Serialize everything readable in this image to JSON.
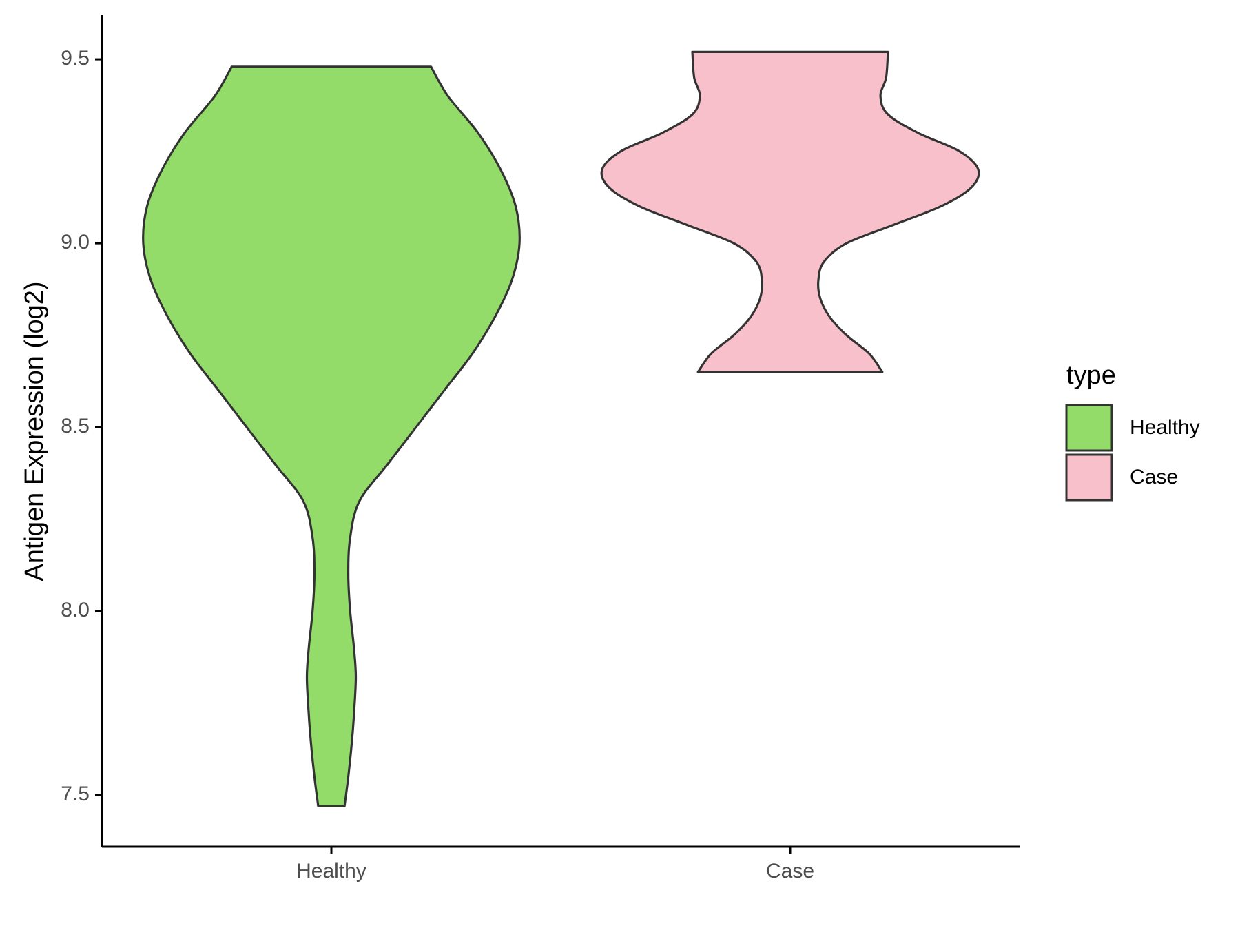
{
  "chart_data": {
    "type": "violin",
    "ylabel": "Antigen Expression (log2)",
    "xlabel": "",
    "ylim": [
      7.36,
      9.62
    ],
    "y_ticks": [
      7.5,
      8.0,
      8.5,
      9.0,
      9.5
    ],
    "y_tick_labels": [
      "7.5",
      "8.0",
      "8.5",
      "9.0",
      "9.5"
    ],
    "categories": [
      "Healthy",
      "Case"
    ],
    "grid": false,
    "legend": {
      "title": "type",
      "position": "right",
      "entries": [
        {
          "label": "Healthy",
          "color": "#93DC6A"
        },
        {
          "label": "Case",
          "color": "#F7C0CB"
        }
      ]
    },
    "series": [
      {
        "name": "Healthy",
        "color": "#93DC6A",
        "min": 7.47,
        "max": 9.48,
        "density": [
          [
            7.47,
            0.07
          ],
          [
            7.55,
            0.09
          ],
          [
            7.65,
            0.11
          ],
          [
            7.72,
            0.12
          ],
          [
            7.82,
            0.13
          ],
          [
            7.9,
            0.12
          ],
          [
            8.0,
            0.1
          ],
          [
            8.1,
            0.09
          ],
          [
            8.2,
            0.1
          ],
          [
            8.3,
            0.15
          ],
          [
            8.4,
            0.3
          ],
          [
            8.5,
            0.45
          ],
          [
            8.6,
            0.6
          ],
          [
            8.7,
            0.75
          ],
          [
            8.8,
            0.87
          ],
          [
            8.9,
            0.96
          ],
          [
            9.0,
            1.0
          ],
          [
            9.1,
            0.98
          ],
          [
            9.2,
            0.9
          ],
          [
            9.3,
            0.78
          ],
          [
            9.4,
            0.62
          ],
          [
            9.48,
            0.53
          ]
        ]
      },
      {
        "name": "Case",
        "color": "#F7C0CB",
        "min": 8.65,
        "max": 9.52,
        "density": [
          [
            8.65,
            0.49
          ],
          [
            8.7,
            0.42
          ],
          [
            8.75,
            0.3
          ],
          [
            8.8,
            0.21
          ],
          [
            8.85,
            0.16
          ],
          [
            8.9,
            0.15
          ],
          [
            8.95,
            0.18
          ],
          [
            9.0,
            0.3
          ],
          [
            9.05,
            0.55
          ],
          [
            9.1,
            0.8
          ],
          [
            9.15,
            0.96
          ],
          [
            9.2,
            1.0
          ],
          [
            9.25,
            0.9
          ],
          [
            9.3,
            0.68
          ],
          [
            9.35,
            0.52
          ],
          [
            9.4,
            0.48
          ],
          [
            9.45,
            0.51
          ],
          [
            9.52,
            0.52
          ]
        ]
      }
    ]
  }
}
